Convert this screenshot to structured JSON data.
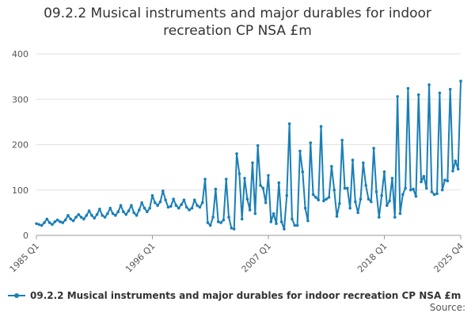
{
  "chart_data": {
    "type": "line",
    "title": "09.2.2 Musical instruments and major durables for indoor recreation CP NSA £m",
    "title_lines": [
      "09.2.2 Musical instruments and major durables for indoor",
      "recreation CP NSA £m"
    ],
    "xlabel": "",
    "ylabel": "",
    "ylim": [
      0,
      400
    ],
    "yticks": [
      0,
      100,
      200,
      300,
      400
    ],
    "x_range": [
      "1985 Q1",
      "2025 Q4"
    ],
    "xticks": [
      "1985 Q1",
      "1996 Q1",
      "2007 Q1",
      "2018 Q1",
      "2025 Q4"
    ],
    "grid": true,
    "legend_position": "bottom",
    "color": "#1a7fb7",
    "series": [
      {
        "name": "09.2.2 Musical instruments and major durables for indoor recreation CP NSA £m",
        "values": [
          26,
          24,
          22,
          28,
          36,
          28,
          24,
          30,
          34,
          30,
          28,
          34,
          44,
          36,
          32,
          40,
          46,
          40,
          36,
          44,
          54,
          44,
          38,
          46,
          58,
          44,
          40,
          48,
          60,
          48,
          44,
          52,
          66,
          52,
          46,
          54,
          66,
          50,
          44,
          56,
          72,
          60,
          52,
          60,
          88,
          72,
          66,
          74,
          98,
          78,
          62,
          64,
          80,
          66,
          60,
          68,
          78,
          62,
          56,
          60,
          78,
          66,
          62,
          72,
          124,
          28,
          22,
          40,
          102,
          30,
          28,
          34,
          124,
          40,
          16,
          14,
          180,
          136,
          36,
          126,
          80,
          56,
          160,
          48,
          198,
          110,
          104,
          72,
          132,
          30,
          48,
          26,
          116,
          30,
          14,
          88,
          246,
          36,
          22,
          22,
          186,
          140,
          60,
          32,
          204,
          90,
          84,
          78,
          240,
          76,
          80,
          84,
          152,
          100,
          42,
          70,
          210,
          104,
          104,
          60,
          166,
          74,
          50,
          80,
          160,
          110,
          80,
          74,
          192,
          96,
          40,
          88,
          140,
          66,
          76,
          126,
          40,
          306,
          48,
          90,
          104,
          324,
          100,
          102,
          86,
          310,
          118,
          130,
          104,
          332,
          96,
          90,
          92,
          314,
          100,
          122,
          120,
          322,
          142,
          164,
          146,
          340
        ]
      }
    ]
  },
  "legend": {
    "label": "09.2.2 Musical instruments and major durables for indoor recreation CP NSA £m"
  },
  "source": {
    "label": "Source:"
  }
}
